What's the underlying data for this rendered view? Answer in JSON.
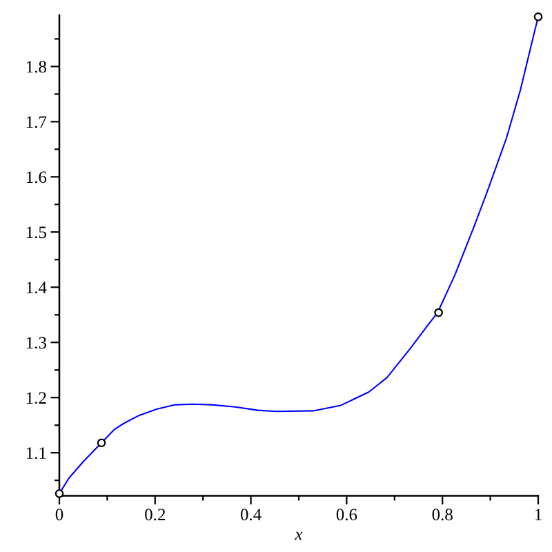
{
  "chart_data": {
    "type": "line",
    "xlabel": "x",
    "xlim": [
      0,
      1
    ],
    "ylim": [
      1.022,
      1.893
    ],
    "xticks": [
      0,
      {
        "value": 0.1,
        "label": null
      },
      0.2,
      {
        "value": 0.3,
        "label": null
      },
      0.4,
      {
        "value": 0.5,
        "label": null
      },
      0.6,
      {
        "value": 0.7,
        "label": null
      },
      0.8,
      {
        "value": 0.9,
        "label": null
      },
      1
    ],
    "yticks": [
      {
        "value": 1.05,
        "label": null
      },
      1.1,
      {
        "value": 1.15,
        "label": null
      },
      1.2,
      {
        "value": 1.25,
        "label": null
      },
      1.3,
      {
        "value": 1.35,
        "label": null
      },
      1.4,
      {
        "value": 1.45,
        "label": null
      },
      1.5,
      {
        "value": 1.55,
        "label": null
      },
      1.6,
      {
        "value": 1.65,
        "label": null
      },
      1.7,
      {
        "value": 1.75,
        "label": null
      },
      1.8,
      {
        "value": 1.85,
        "label": null
      }
    ],
    "series": [
      {
        "color": "#0000ff",
        "marker": "none",
        "line_style": "solid",
        "x": [
          0,
          0.02,
          0.049,
          0.088,
          0.116,
          0.136,
          0.165,
          0.203,
          0.242,
          0.28,
          0.318,
          0.367,
          0.415,
          0.453,
          0.53,
          0.588,
          0.646,
          0.684,
          0.732,
          0.771,
          0.79,
          0.826,
          0.867,
          0.896,
          0.934,
          0.963,
          0.992,
          1
        ],
        "values": [
          1.026,
          1.054,
          1.083,
          1.118,
          1.143,
          1.154,
          1.167,
          1.179,
          1.187,
          1.188,
          1.187,
          1.183,
          1.177,
          1.175,
          1.176,
          1.186,
          1.21,
          1.236,
          1.288,
          1.333,
          1.354,
          1.422,
          1.512,
          1.579,
          1.671,
          1.758,
          1.862,
          1.89
        ]
      },
      {
        "type": "scatter",
        "color": "#000000",
        "marker": "circle",
        "x": [
          0,
          0.088,
          0.792,
          1
        ],
        "values": [
          1.026,
          1.118,
          1.354,
          1.89
        ]
      }
    ]
  }
}
